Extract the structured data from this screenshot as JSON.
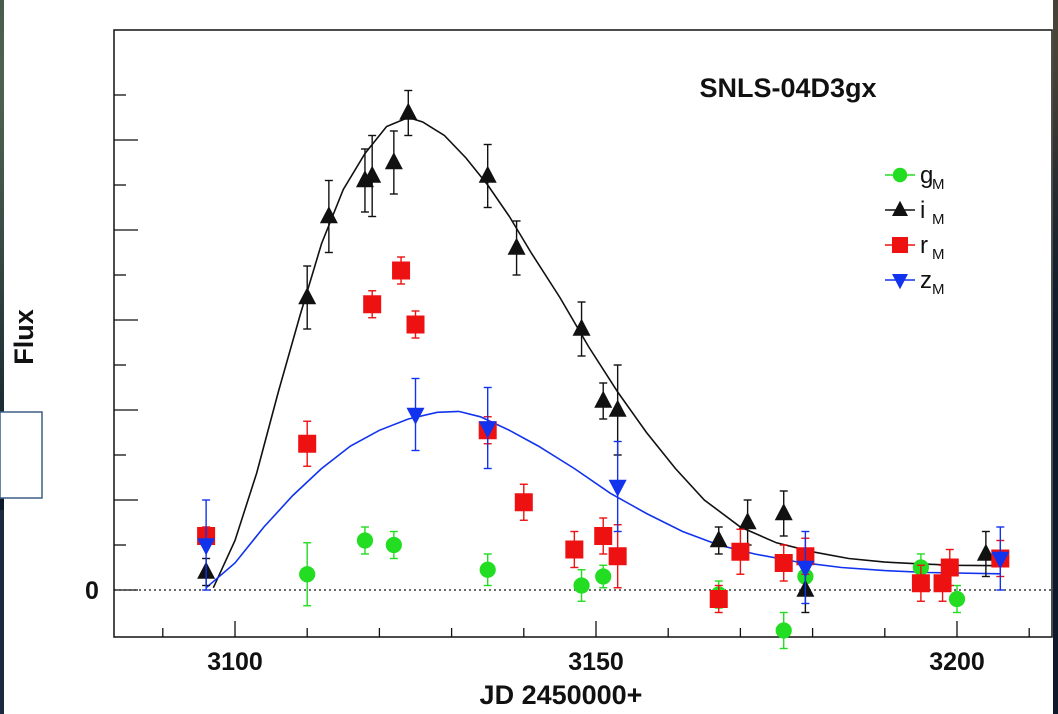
{
  "chart_data": {
    "type": "scatter",
    "title": "SNLS-04D3gx",
    "xlabel": "JD 2450000+",
    "ylabel": "Flux",
    "xlim": [
      3085,
      3215
    ],
    "ylim": [
      -10,
      116
    ],
    "x_ticks": [
      3100,
      3150,
      3200
    ],
    "y_ticks": [
      0
    ],
    "zero_line": "dotted",
    "legend_position": "right",
    "series": [
      {
        "name": "g",
        "subscript": "M",
        "color": "#22dd22",
        "marker": "circle",
        "points": [
          {
            "x": 3110,
            "y": 3.5,
            "err": 7
          },
          {
            "x": 3118,
            "y": 11,
            "err": 3
          },
          {
            "x": 3122,
            "y": 10,
            "err": 3
          },
          {
            "x": 3135,
            "y": 4.5,
            "err": 3.5
          },
          {
            "x": 3148,
            "y": 1,
            "err": 3.5
          },
          {
            "x": 3151,
            "y": 3,
            "err": 2.5
          },
          {
            "x": 3167,
            "y": -1,
            "err": 3
          },
          {
            "x": 3176,
            "y": -9,
            "err": 4
          },
          {
            "x": 3179,
            "y": 3,
            "err": 3
          },
          {
            "x": 3195,
            "y": 5,
            "err": 3
          },
          {
            "x": 3200,
            "y": -2,
            "err": 3
          }
        ]
      },
      {
        "name": "i",
        "subscript": "M",
        "color": "#111111",
        "marker": "triangle-up",
        "points": [
          {
            "x": 3096,
            "y": 4,
            "err": 3
          },
          {
            "x": 3110,
            "y": 65,
            "err": 7
          },
          {
            "x": 3113,
            "y": 83,
            "err": 8
          },
          {
            "x": 3118,
            "y": 91,
            "err": 7
          },
          {
            "x": 3119,
            "y": 92,
            "err": 9
          },
          {
            "x": 3122,
            "y": 95,
            "err": 7
          },
          {
            "x": 3124,
            "y": 106,
            "err": 5
          },
          {
            "x": 3135,
            "y": 92,
            "err": 7
          },
          {
            "x": 3139,
            "y": 76,
            "err": 6
          },
          {
            "x": 3148,
            "y": 58,
            "err": 6
          },
          {
            "x": 3151,
            "y": 42,
            "err": 4
          },
          {
            "x": 3153,
            "y": 40,
            "err": 10
          },
          {
            "x": 3167,
            "y": 11,
            "err": 3
          },
          {
            "x": 3171,
            "y": 15,
            "err": 5
          },
          {
            "x": 3176,
            "y": 17,
            "err": 5
          },
          {
            "x": 3179,
            "y": 0,
            "err": 5
          },
          {
            "x": 3204,
            "y": 8,
            "err": 5
          }
        ]
      },
      {
        "name": "r",
        "subscript": "M",
        "color": "#ee1111",
        "marker": "square",
        "points": [
          {
            "x": 3096,
            "y": 12,
            "err": 2
          },
          {
            "x": 3110,
            "y": 32.5,
            "err": 5
          },
          {
            "x": 3119,
            "y": 63.5,
            "err": 3
          },
          {
            "x": 3123,
            "y": 71,
            "err": 3
          },
          {
            "x": 3125,
            "y": 59,
            "err": 3
          },
          {
            "x": 3135,
            "y": 35.5,
            "err": 3
          },
          {
            "x": 3140,
            "y": 19.5,
            "err": 4
          },
          {
            "x": 3147,
            "y": 9,
            "err": 4
          },
          {
            "x": 3151,
            "y": 12,
            "err": 4
          },
          {
            "x": 3153,
            "y": 7.5,
            "err": 7
          },
          {
            "x": 3167,
            "y": -2,
            "err": 3
          },
          {
            "x": 3170,
            "y": 8.5,
            "err": 5
          },
          {
            "x": 3176,
            "y": 6,
            "err": 4
          },
          {
            "x": 3179,
            "y": 7.5,
            "err": 4
          },
          {
            "x": 3195,
            "y": 1.5,
            "err": 4
          },
          {
            "x": 3198,
            "y": 1.5,
            "err": 4
          },
          {
            "x": 3199,
            "y": 5,
            "err": 4
          },
          {
            "x": 3206,
            "y": 7,
            "err": 4
          }
        ]
      },
      {
        "name": "z",
        "subscript": "M",
        "color": "#1133ee",
        "marker": "triangle-down",
        "points": [
          {
            "x": 3096,
            "y": 10,
            "err": 10
          },
          {
            "x": 3125,
            "y": 39,
            "err": 8
          },
          {
            "x": 3135,
            "y": 36,
            "err": 9
          },
          {
            "x": 3153,
            "y": 23,
            "err": 10
          },
          {
            "x": 3179,
            "y": 5,
            "err": 8
          },
          {
            "x": 3206,
            "y": 7,
            "err": 7
          }
        ]
      }
    ],
    "fits": [
      {
        "color": "#111111",
        "curve": [
          [
            3097,
            0.5
          ],
          [
            3100,
            11
          ],
          [
            3103,
            26
          ],
          [
            3106,
            44
          ],
          [
            3109,
            61
          ],
          [
            3112,
            77
          ],
          [
            3115,
            89
          ],
          [
            3118,
            97
          ],
          [
            3121,
            103
          ],
          [
            3124,
            105
          ],
          [
            3126,
            104
          ],
          [
            3129,
            101
          ],
          [
            3132,
            96
          ],
          [
            3135,
            90
          ],
          [
            3138,
            83
          ],
          [
            3141,
            75
          ],
          [
            3145,
            65
          ],
          [
            3149,
            54
          ],
          [
            3153,
            44
          ],
          [
            3157,
            35
          ],
          [
            3161,
            27
          ],
          [
            3165,
            20
          ],
          [
            3170,
            14
          ],
          [
            3175,
            10.5
          ],
          [
            3180,
            8.5
          ],
          [
            3185,
            7
          ],
          [
            3190,
            6.2
          ],
          [
            3195,
            5.8
          ],
          [
            3200,
            5.5
          ],
          [
            3206,
            5.4
          ]
        ]
      },
      {
        "color": "#1133ee",
        "curve": [
          [
            3096,
            0.5
          ],
          [
            3100,
            6
          ],
          [
            3104,
            14
          ],
          [
            3108,
            21
          ],
          [
            3112,
            27
          ],
          [
            3116,
            32
          ],
          [
            3120,
            35.5
          ],
          [
            3124,
            38
          ],
          [
            3128,
            39.5
          ],
          [
            3131,
            39.7
          ],
          [
            3134,
            38.5
          ],
          [
            3138,
            35.5
          ],
          [
            3142,
            32
          ],
          [
            3147,
            27
          ],
          [
            3152,
            21.5
          ],
          [
            3157,
            17
          ],
          [
            3162,
            13
          ],
          [
            3167,
            10
          ],
          [
            3172,
            8
          ],
          [
            3178,
            6.2
          ],
          [
            3184,
            5
          ],
          [
            3190,
            4.3
          ],
          [
            3196,
            3.9
          ],
          [
            3206,
            3.6
          ]
        ]
      }
    ]
  }
}
